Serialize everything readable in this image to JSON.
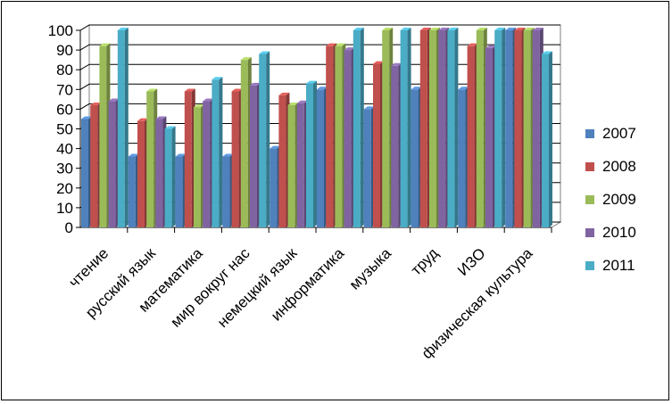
{
  "chart_data": {
    "type": "bar",
    "style": "3d-clustered-column",
    "categories": [
      "чтение",
      "русский язык",
      "математика",
      "мир вокруг нас",
      "немецкий язык",
      "информатика",
      "музыка",
      "труд",
      "ИЗО",
      "физическая культура"
    ],
    "series": [
      {
        "name": "2007",
        "color": "#4F81BD",
        "values": [
          55,
          36,
          36,
          36,
          40,
          70,
          60,
          70,
          70,
          100
        ]
      },
      {
        "name": "2008",
        "color": "#C0504D",
        "values": [
          62,
          54,
          69,
          69,
          67,
          92,
          83,
          100,
          92,
          100
        ]
      },
      {
        "name": "2009",
        "color": "#9BBB59",
        "values": [
          92,
          69,
          61,
          85,
          62,
          92,
          100,
          100,
          100,
          100
        ]
      },
      {
        "name": "2010",
        "color": "#8064A2",
        "values": [
          64,
          55,
          64,
          72,
          63,
          90,
          82,
          100,
          91,
          100
        ]
      },
      {
        "name": "2011",
        "color": "#4BACC6",
        "values": [
          100,
          50,
          75,
          88,
          73,
          100,
          100,
          100,
          100,
          88
        ]
      }
    ],
    "ylim": [
      0,
      100
    ],
    "yticks": [
      "0",
      "10",
      "20",
      "30",
      "40",
      "50",
      "60",
      "70",
      "80",
      "90",
      "100"
    ],
    "grid": true,
    "legend": "right"
  }
}
